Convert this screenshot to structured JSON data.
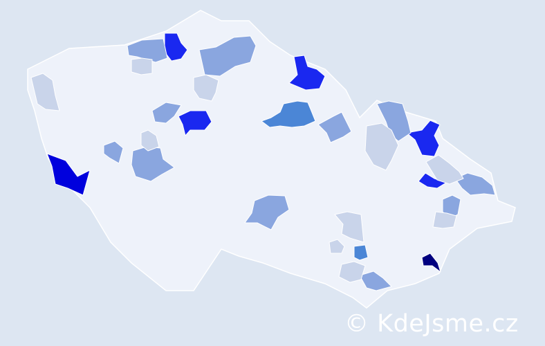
{
  "map": {
    "colors": {
      "background": "#dde6f2",
      "country": "#eef2fa",
      "level_0": "#c9d4ea",
      "level_1": "#8aa6df",
      "level_2": "#4b86d6",
      "level_3": "#1a28f0",
      "level_4": "#0000dd",
      "level_5": "#00007f"
    },
    "regions": [
      {
        "name": "sw-region",
        "level": "level_4"
      },
      {
        "name": "se-region",
        "level": "level_5"
      },
      {
        "name": "north-region-a",
        "level": "level_3"
      },
      {
        "name": "north-region-b",
        "level": "level_3"
      },
      {
        "name": "central-region-a",
        "level": "level_3"
      },
      {
        "name": "ne-region-a",
        "level": "level_3"
      },
      {
        "name": "east-region-a",
        "level": "level_3"
      },
      {
        "name": "central-region-b",
        "level": "level_2"
      },
      {
        "name": "south-region-a",
        "level": "level_2"
      },
      {
        "name": "north-region-c",
        "level": "level_1"
      },
      {
        "name": "north-region-d",
        "level": "level_1"
      },
      {
        "name": "central-region-c",
        "level": "level_1"
      },
      {
        "name": "west-region-a",
        "level": "level_1"
      },
      {
        "name": "west-region-b",
        "level": "level_1"
      },
      {
        "name": "south-region-b",
        "level": "level_1"
      },
      {
        "name": "east-region-b",
        "level": "level_1"
      },
      {
        "name": "ne-region-b",
        "level": "level_1"
      },
      {
        "name": "east-region-c",
        "level": "level_1"
      },
      {
        "name": "east-region-d",
        "level": "level_1"
      },
      {
        "name": "south-region-c",
        "level": "level_1"
      },
      {
        "name": "west-region-c",
        "level": "level_0"
      },
      {
        "name": "north-region-e",
        "level": "level_0"
      },
      {
        "name": "ne-region-c",
        "level": "level_0"
      },
      {
        "name": "east-region-e",
        "level": "level_0"
      },
      {
        "name": "south-region-d",
        "level": "level_0"
      },
      {
        "name": "east-region-f",
        "level": "level_0"
      },
      {
        "name": "south-region-e",
        "level": "level_0"
      },
      {
        "name": "south-region-f",
        "level": "level_0"
      },
      {
        "name": "north-region-f",
        "level": "level_0"
      },
      {
        "name": "west-region-d",
        "level": "level_0"
      }
    ]
  },
  "watermark": "© KdeJsme.cz"
}
